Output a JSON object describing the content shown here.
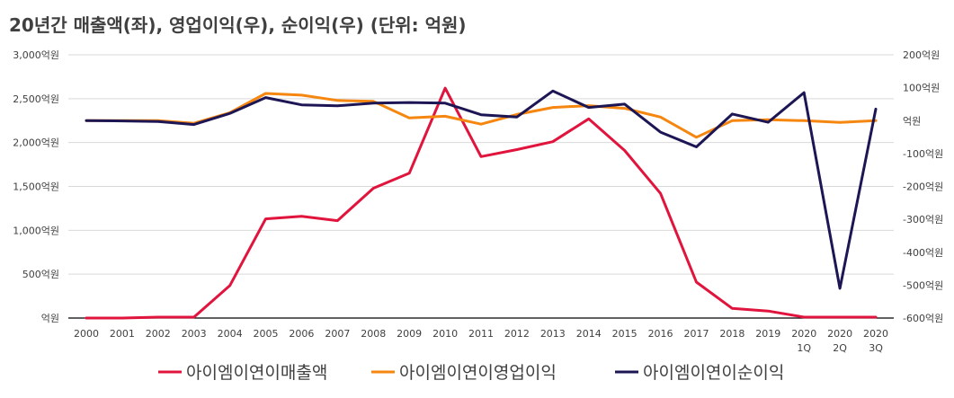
{
  "chart_data": {
    "type": "line",
    "title": "20년간 매출액(좌), 영업이익(우), 순이익(우) (단위: 억원)",
    "categories": [
      [
        "2000"
      ],
      [
        "2001"
      ],
      [
        "2002"
      ],
      [
        "2003"
      ],
      [
        "2004"
      ],
      [
        "2005"
      ],
      [
        "2006"
      ],
      [
        "2007"
      ],
      [
        "2008"
      ],
      [
        "2009"
      ],
      [
        "2010"
      ],
      [
        "2011"
      ],
      [
        "2012"
      ],
      [
        "2013"
      ],
      [
        "2014"
      ],
      [
        "2015"
      ],
      [
        "2016"
      ],
      [
        "2017"
      ],
      [
        "2018"
      ],
      [
        "2019"
      ],
      [
        "2020",
        "1Q"
      ],
      [
        "2020",
        "2Q"
      ],
      [
        "2020",
        "3Q"
      ]
    ],
    "left_axis": {
      "ylim": [
        0,
        3000
      ],
      "ticks": [
        0,
        500,
        1000,
        1500,
        2000,
        2500,
        3000
      ],
      "tick_labels": [
        "억원",
        "500억원",
        "1,000억원",
        "1,500억원",
        "2,000억원",
        "2,500억원",
        "3,000억원"
      ]
    },
    "right_axis": {
      "ylim": [
        -600,
        200
      ],
      "ticks": [
        -600,
        -500,
        -400,
        -300,
        -200,
        -100,
        0,
        100,
        200
      ],
      "tick_labels": [
        "-600억원",
        "-500억원",
        "-400억원",
        "-300억원",
        "-200억원",
        "-100억원",
        "억원",
        "100억원",
        "200억원"
      ]
    },
    "series": [
      {
        "name": "아이엠이연이매출액",
        "axis": "left",
        "color": "#e0143c",
        "values": [
          0,
          0,
          10,
          10,
          370,
          1130,
          1160,
          1110,
          1480,
          1650,
          2620,
          1840,
          1920,
          2010,
          2270,
          1910,
          1420,
          410,
          110,
          80,
          10,
          10,
          10
        ]
      },
      {
        "name": "아이엠이연이영업이익",
        "axis": "left",
        "color": "#f5860f",
        "values": [
          2250,
          2250,
          2250,
          2220,
          2340,
          2560,
          2540,
          2480,
          2470,
          2280,
          2300,
          2210,
          2320,
          2400,
          2420,
          2390,
          2290,
          2060,
          2250,
          2260,
          2250,
          2230,
          2250
        ]
      },
      {
        "name": "아이엠이연이순이익",
        "axis": "right",
        "color": "#1d1654",
        "values": [
          0,
          -1,
          -3,
          -12,
          22,
          70,
          48,
          45,
          53,
          55,
          53,
          18,
          11,
          90,
          40,
          50,
          -35,
          -80,
          20,
          -5,
          85,
          -510,
          35
        ]
      }
    ],
    "grid": "horizontal",
    "legend_position": "bottom"
  }
}
